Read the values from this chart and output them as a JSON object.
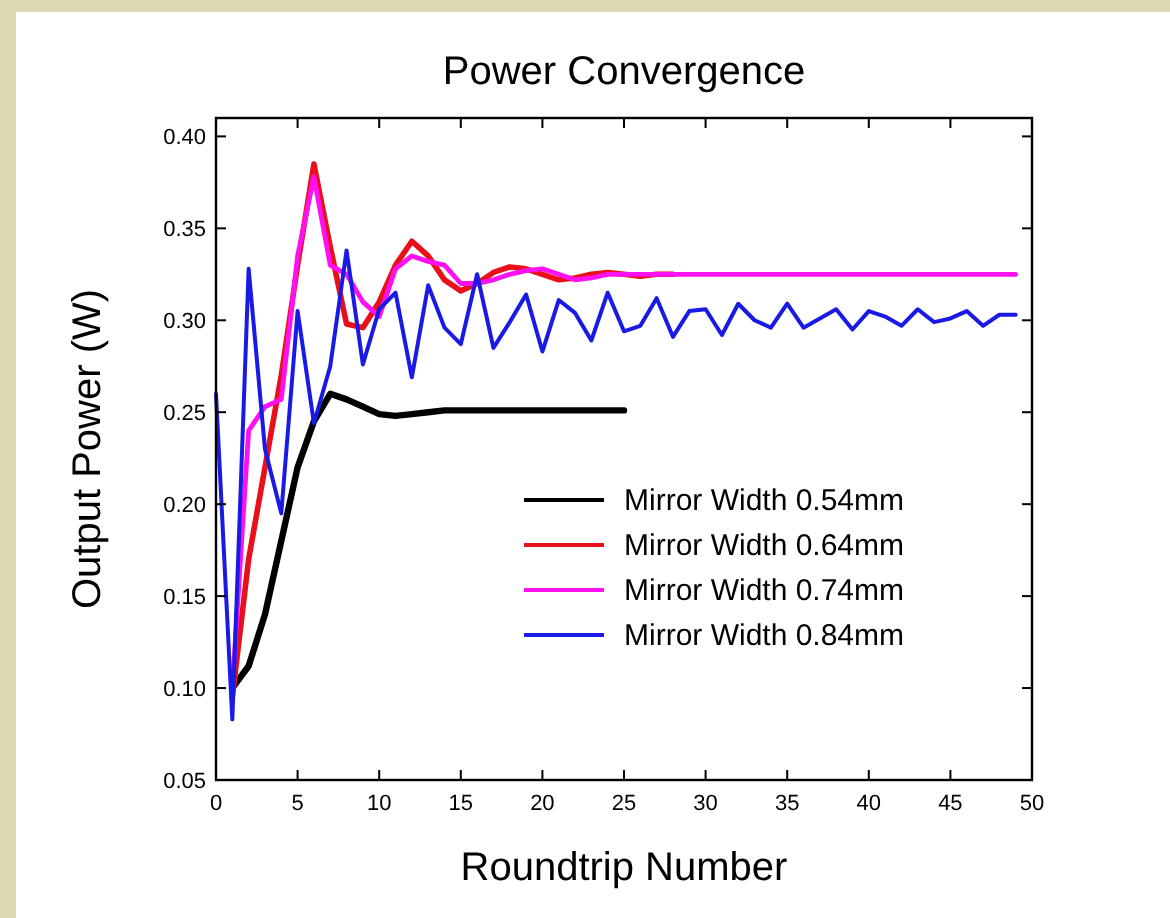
{
  "chart_data": {
    "type": "line",
    "title": "Power Convergence",
    "xlabel": "Roundtrip Number",
    "ylabel": "Output Power (W)",
    "x": [
      0,
      1,
      2,
      3,
      4,
      5,
      6,
      7,
      8,
      9,
      10,
      11,
      12,
      13,
      14,
      15,
      16,
      17,
      18,
      19,
      20,
      21,
      22,
      23,
      24,
      25,
      26,
      27,
      28,
      29,
      30,
      31,
      32,
      33,
      34,
      35,
      36,
      37,
      38,
      39,
      40,
      41,
      42,
      43,
      44,
      45,
      46,
      47,
      48,
      49
    ],
    "xlim": [
      0,
      50
    ],
    "xticks": [
      0,
      5,
      10,
      15,
      20,
      25,
      30,
      35,
      40,
      45,
      50
    ],
    "ylim": [
      0.05,
      0.41
    ],
    "yticks": [
      {
        "value": 0.05,
        "label": "0.05"
      },
      {
        "value": 0.1,
        "label": "0.10"
      },
      {
        "value": 0.15,
        "label": "0.15"
      },
      {
        "value": 0.2,
        "label": "0.20"
      },
      {
        "value": 0.25,
        "label": "0.25"
      },
      {
        "value": 0.3,
        "label": "0.30"
      },
      {
        "value": 0.35,
        "label": "0.35"
      },
      {
        "value": 0.4,
        "label": "0.40"
      }
    ],
    "grid": false,
    "legend": "bottom right",
    "marker": "none",
    "line_style": "solid",
    "series": [
      {
        "name": "Mirror Width 0.54mm",
        "color": "#000000",
        "values": [
          null,
          0.1,
          0.112,
          0.14,
          0.18,
          0.22,
          0.245,
          0.26,
          0.257,
          0.253,
          0.249,
          0.248,
          0.249,
          0.25,
          0.251,
          0.251,
          0.251,
          0.251,
          0.251,
          0.251,
          0.251,
          0.251,
          0.251,
          0.251,
          0.251,
          0.251,
          null,
          null,
          null,
          null,
          null,
          null,
          null,
          null,
          null,
          null,
          null,
          null,
          null,
          null,
          null,
          null,
          null,
          null,
          null,
          null,
          null,
          null,
          null,
          null
        ]
      },
      {
        "name": "Mirror Width 0.64mm",
        "color": "#e8101a",
        "values": [
          null,
          0.095,
          0.17,
          0.22,
          0.27,
          0.33,
          0.385,
          0.34,
          0.298,
          0.296,
          0.31,
          0.33,
          0.343,
          0.335,
          0.322,
          0.316,
          0.32,
          0.326,
          0.329,
          0.328,
          0.325,
          0.322,
          0.323,
          0.325,
          0.326,
          0.325,
          0.324,
          0.325,
          0.325,
          null,
          null,
          null,
          null,
          null,
          null,
          null,
          null,
          null,
          null,
          null,
          null,
          null,
          null,
          null,
          null,
          null,
          null,
          null,
          null,
          null
        ]
      },
      {
        "name": "Mirror Width 0.74mm",
        "color": "#ff10f0",
        "values": [
          null,
          0.1,
          0.24,
          0.253,
          0.257,
          0.335,
          0.378,
          0.33,
          0.325,
          0.31,
          0.302,
          0.328,
          0.335,
          0.332,
          0.33,
          0.32,
          0.32,
          0.322,
          0.325,
          0.327,
          0.328,
          0.325,
          0.322,
          0.323,
          0.325,
          0.325,
          0.325,
          0.325,
          0.325,
          0.325,
          0.325,
          0.325,
          0.325,
          0.325,
          0.325,
          0.325,
          0.325,
          0.325,
          0.325,
          0.325,
          0.325,
          0.325,
          0.325,
          0.325,
          0.325,
          0.325,
          0.325,
          0.325,
          0.325,
          0.325
        ]
      },
      {
        "name": "Mirror Width 0.84mm",
        "color": "#1a1ae6",
        "values": [
          0.26,
          0.083,
          0.328,
          0.23,
          0.195,
          0.305,
          0.244,
          0.275,
          0.338,
          0.276,
          0.306,
          0.315,
          0.269,
          0.319,
          0.296,
          0.287,
          0.325,
          0.285,
          0.299,
          0.314,
          0.283,
          0.311,
          0.304,
          0.289,
          0.315,
          0.294,
          0.297,
          0.312,
          0.291,
          0.305,
          0.306,
          0.292,
          0.309,
          0.3,
          0.296,
          0.309,
          0.296,
          0.301,
          0.306,
          0.295,
          0.305,
          0.302,
          0.297,
          0.306,
          0.299,
          0.301,
          0.305,
          0.297,
          0.303,
          0.303
        ]
      }
    ]
  }
}
